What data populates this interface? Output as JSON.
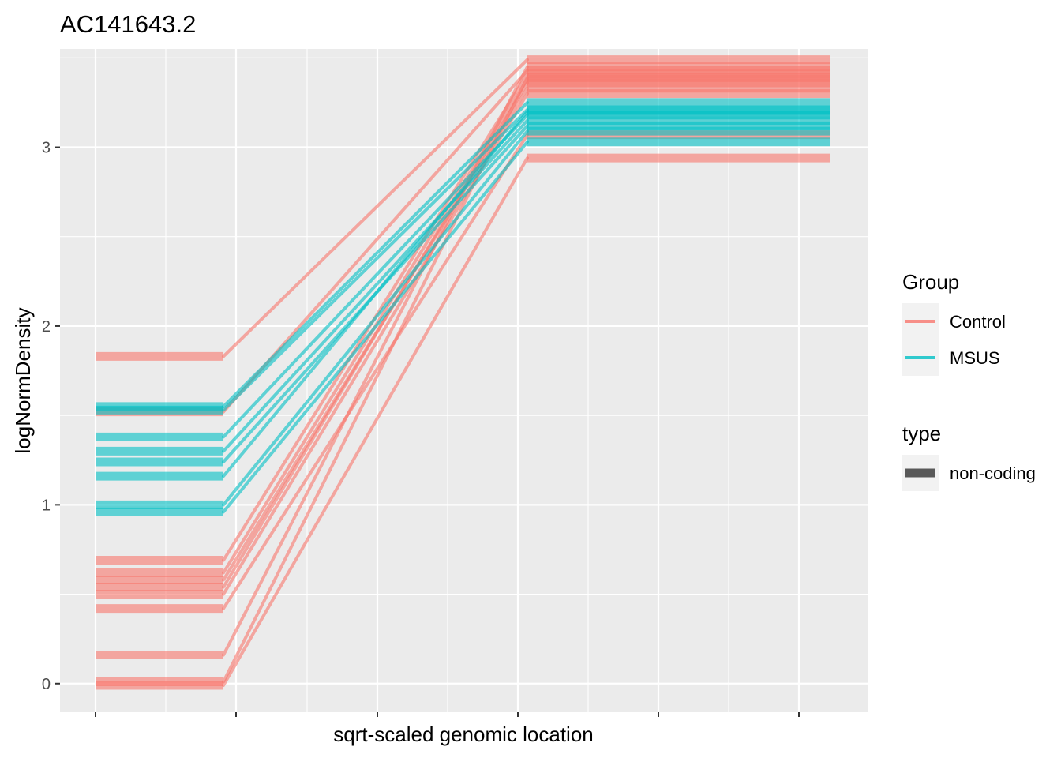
{
  "chart_data": {
    "type": "line",
    "title": "AC141643.2",
    "xlabel": "sqrt-scaled genomic location",
    "ylabel": "logNormDensity",
    "ylim": [
      -0.16,
      3.55
    ],
    "y_ticks": [
      "0",
      "1",
      "2",
      "3"
    ],
    "grid": true,
    "legend_position": "right",
    "legends": [
      {
        "title": "Group",
        "items": [
          {
            "label": "Control",
            "color": "#F8766D"
          },
          {
            "label": "MSUS",
            "color": "#00BFC4"
          }
        ]
      },
      {
        "title": "type",
        "items": [
          {
            "label": "non-coding",
            "color": "#595959"
          }
        ]
      }
    ],
    "colors": {
      "Control": "#F8766D",
      "MSUS": "#00BFC4"
    },
    "segment_type": "non-coding",
    "series": [
      {
        "group": "Control",
        "start": 1.83,
        "end": 3.49
      },
      {
        "group": "Control",
        "start": 1.52,
        "end": 3.43
      },
      {
        "group": "Control",
        "start": 0.69,
        "end": 3.41
      },
      {
        "group": "Control",
        "start": 0.62,
        "end": 3.38
      },
      {
        "group": "Control",
        "start": 0.58,
        "end": 3.33
      },
      {
        "group": "Control",
        "start": 0.54,
        "end": 3.36
      },
      {
        "group": "Control",
        "start": 0.5,
        "end": 3.3
      },
      {
        "group": "Control",
        "start": 0.42,
        "end": 3.07
      },
      {
        "group": "Control",
        "start": 0.16,
        "end": 3.45
      },
      {
        "group": "Control",
        "start": 0.01,
        "end": 3.39
      },
      {
        "group": "Control",
        "start": -0.01,
        "end": 2.94
      },
      {
        "group": "MSUS",
        "start": 1.55,
        "end": 3.25
      },
      {
        "group": "MSUS",
        "start": 1.53,
        "end": 3.21
      },
      {
        "group": "MSUS",
        "start": 1.38,
        "end": 3.18
      },
      {
        "group": "MSUS",
        "start": 1.3,
        "end": 3.15
      },
      {
        "group": "MSUS",
        "start": 1.24,
        "end": 3.12
      },
      {
        "group": "MSUS",
        "start": 1.16,
        "end": 3.2
      },
      {
        "group": "MSUS",
        "start": 1.0,
        "end": 3.09
      },
      {
        "group": "MSUS",
        "start": 0.96,
        "end": 3.03
      }
    ]
  }
}
